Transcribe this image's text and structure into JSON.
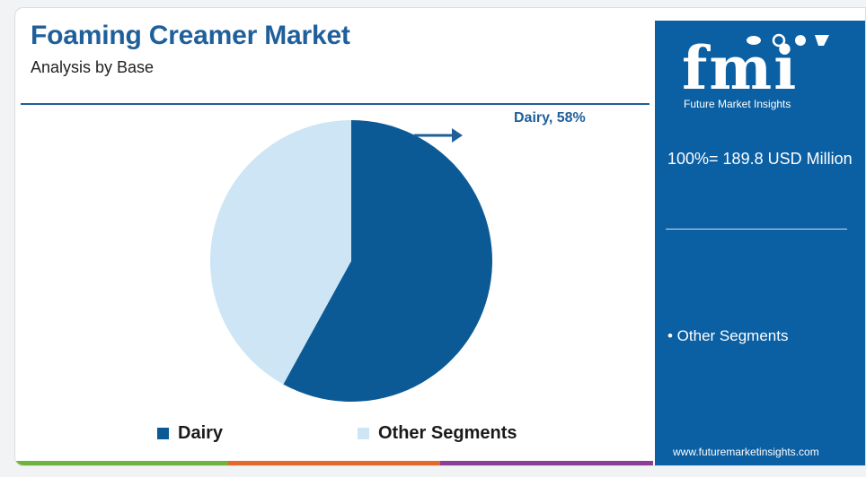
{
  "header": {
    "title": "Foaming Creamer Market",
    "subtitle": "Analysis by Base"
  },
  "chart_data": {
    "type": "pie",
    "title": "Foaming Creamer Market",
    "subtitle": "Analysis by Base",
    "categories": [
      "Dairy",
      "Other Segments"
    ],
    "values": [
      58,
      42
    ],
    "unit": "%",
    "colors": [
      "#0b5a96",
      "#cde5f5"
    ],
    "slice_label": "Dairy, 58%",
    "legend": {
      "position": "bottom",
      "entries": [
        "Dairy",
        "Other Segments"
      ]
    }
  },
  "sidebar": {
    "brand": "fmi",
    "tagline": "Future Market Insights",
    "total": "100%= 189.8 USD Million",
    "segments_item": "• Other Segments",
    "website": "www.futuremarketinsights.com",
    "background_color": "#0b5fa3"
  },
  "footer_colors": [
    "#6fb33f",
    "#e26a2c",
    "#8a3f97"
  ]
}
